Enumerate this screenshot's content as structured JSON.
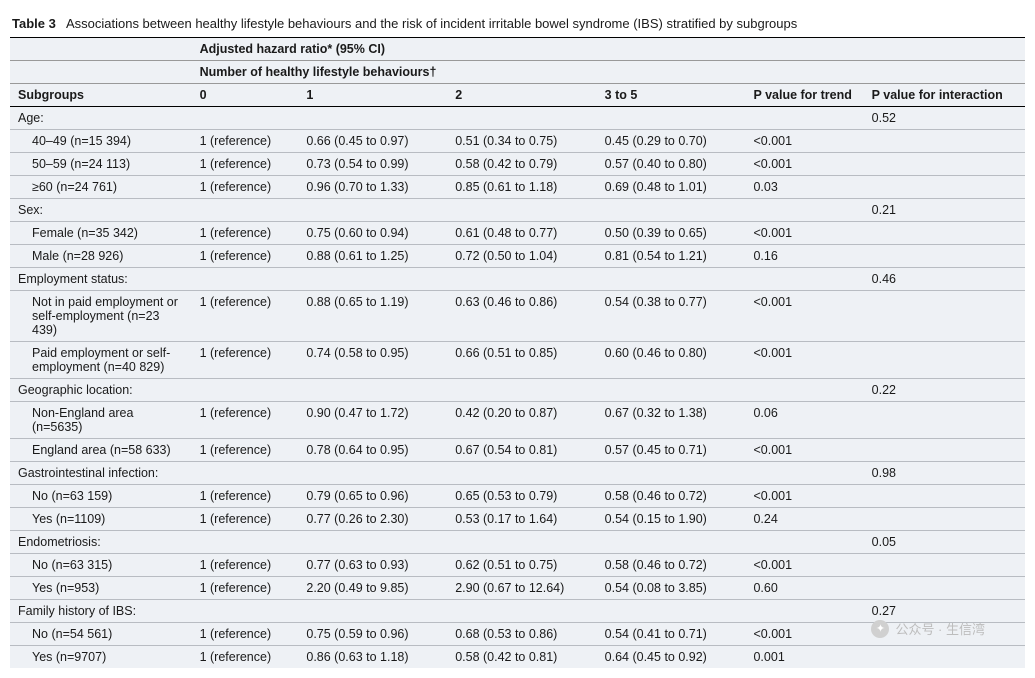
{
  "title_label": "Table 3",
  "title_text": "Associations between healthy lifestyle behaviours and the risk of incident irritable bowel syndrome (IBS) stratified by subgroups",
  "header_top": "Adjusted hazard ratio* (95% CI)",
  "header_sub": "Number of healthy lifestyle behaviours†",
  "col_subgroups": "Subgroups",
  "col_0": "0",
  "col_1": "1",
  "col_2": "2",
  "col_3to5": "3 to 5",
  "col_ptrend": "P value for trend",
  "col_pinter": "P value for interaction",
  "ref": "1 (reference)",
  "groups": [
    {
      "label": "Age:",
      "pinter": "0.52",
      "rows": [
        {
          "sub": "40–49 (n=15 394)",
          "v1": "0.66 (0.45 to 0.97)",
          "v2": "0.51 (0.34 to 0.75)",
          "v3": "0.45 (0.29 to 0.70)",
          "pt": "<0.001"
        },
        {
          "sub": "50–59 (n=24 113)",
          "v1": "0.73 (0.54 to 0.99)",
          "v2": "0.58 (0.42 to 0.79)",
          "v3": "0.57 (0.40 to 0.80)",
          "pt": "<0.001"
        },
        {
          "sub": "≥60 (n=24 761)",
          "v1": "0.96 (0.70 to 1.33)",
          "v2": "0.85 (0.61 to 1.18)",
          "v3": "0.69 (0.48 to 1.01)",
          "pt": "0.03"
        }
      ]
    },
    {
      "label": "Sex:",
      "pinter": "0.21",
      "rows": [
        {
          "sub": "Female (n=35 342)",
          "v1": "0.75 (0.60 to 0.94)",
          "v2": "0.61 (0.48 to 0.77)",
          "v3": "0.50 (0.39 to 0.65)",
          "pt": "<0.001"
        },
        {
          "sub": "Male (n=28 926)",
          "v1": "0.88 (0.61 to 1.25)",
          "v2": "0.72 (0.50 to 1.04)",
          "v3": "0.81 (0.54 to 1.21)",
          "pt": "0.16"
        }
      ]
    },
    {
      "label": "Employment status:",
      "pinter": "0.46",
      "rows": [
        {
          "sub": "Not in paid employment or self-employment (n=23 439)",
          "v1": "0.88 (0.65 to 1.19)",
          "v2": "0.63 (0.46 to 0.86)",
          "v3": "0.54 (0.38 to 0.77)",
          "pt": "<0.001"
        },
        {
          "sub": "Paid employment or self-employment (n=40 829)",
          "v1": "0.74 (0.58 to 0.95)",
          "v2": "0.66 (0.51 to 0.85)",
          "v3": "0.60 (0.46 to 0.80)",
          "pt": "<0.001"
        }
      ]
    },
    {
      "label": "Geographic location:",
      "pinter": "0.22",
      "rows": [
        {
          "sub": "Non-England area (n=5635)",
          "v1": "0.90 (0.47 to 1.72)",
          "v2": "0.42 (0.20 to 0.87)",
          "v3": "0.67 (0.32 to 1.38)",
          "pt": "0.06"
        },
        {
          "sub": "England area (n=58 633)",
          "v1": "0.78 (0.64 to 0.95)",
          "v2": "0.67 (0.54 to 0.81)",
          "v3": "0.57 (0.45 to 0.71)",
          "pt": "<0.001"
        }
      ]
    },
    {
      "label": "Gastrointestinal infection:",
      "pinter": "0.98",
      "rows": [
        {
          "sub": "No (n=63 159)",
          "v1": "0.79 (0.65 to 0.96)",
          "v2": "0.65 (0.53 to 0.79)",
          "v3": "0.58 (0.46 to 0.72)",
          "pt": "<0.001"
        },
        {
          "sub": "Yes (n=1109)",
          "v1": "0.77 (0.26 to 2.30)",
          "v2": "0.53 (0.17 to 1.64)",
          "v3": "0.54 (0.15 to 1.90)",
          "pt": "0.24"
        }
      ]
    },
    {
      "label": "Endometriosis:",
      "pinter": "0.05",
      "rows": [
        {
          "sub": "No (n=63 315)",
          "v1": "0.77 (0.63 to 0.93)",
          "v2": "0.62 (0.51 to 0.75)",
          "v3": "0.58 (0.46 to 0.72)",
          "pt": "<0.001"
        },
        {
          "sub": "Yes (n=953)",
          "v1": "2.20 (0.49 to 9.85)",
          "v2": "2.90 (0.67 to 12.64)",
          "v3": "0.54 (0.08 to 3.85)",
          "pt": "0.60"
        }
      ]
    },
    {
      "label": "Family history of IBS:",
      "pinter": "0.27",
      "rows": [
        {
          "sub": "No (n=54 561)",
          "v1": "0.75 (0.59 to 0.96)",
          "v2": "0.68 (0.53 to 0.86)",
          "v3": "0.54 (0.41 to 0.71)",
          "pt": "<0.001"
        },
        {
          "sub": "Yes (n=9707)",
          "v1": "0.86 (0.63 to 1.18)",
          "v2": "0.58 (0.42 to 0.81)",
          "v3": "0.64 (0.45 to 0.92)",
          "pt": "0.001"
        }
      ]
    }
  ],
  "watermark": "公众号 · 生信湾"
}
